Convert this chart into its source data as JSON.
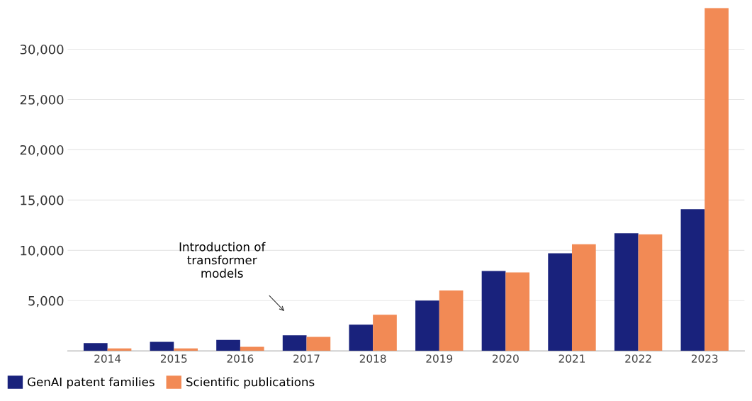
{
  "chart_data": {
    "type": "bar",
    "categories": [
      "2014",
      "2015",
      "2016",
      "2017",
      "2018",
      "2019",
      "2020",
      "2021",
      "2022",
      "2023"
    ],
    "series": [
      {
        "name": "GenAI patent families",
        "color": "#19227c",
        "values": [
          770,
          900,
          1100,
          1550,
          2600,
          5000,
          7950,
          9700,
          11700,
          14100
        ]
      },
      {
        "name": "Scientific publications",
        "color": "#f28a55",
        "values": [
          250,
          250,
          400,
          1400,
          3600,
          6000,
          7800,
          10600,
          11600,
          34100
        ]
      }
    ],
    "ylim": [
      0,
      34100
    ],
    "yticks": [
      {
        "value": 5000,
        "label": "5,000"
      },
      {
        "value": 10000,
        "label": "10,000"
      },
      {
        "value": 15000,
        "label": "15,000"
      },
      {
        "value": 20000,
        "label": "20,000"
      },
      {
        "value": 25000,
        "label": "25,000"
      },
      {
        "value": 30000,
        "label": "30,000"
      }
    ],
    "grid": "y",
    "legend": "bottom left",
    "annotations": [
      "Introduction of\ntransformer\nmodels"
    ]
  }
}
